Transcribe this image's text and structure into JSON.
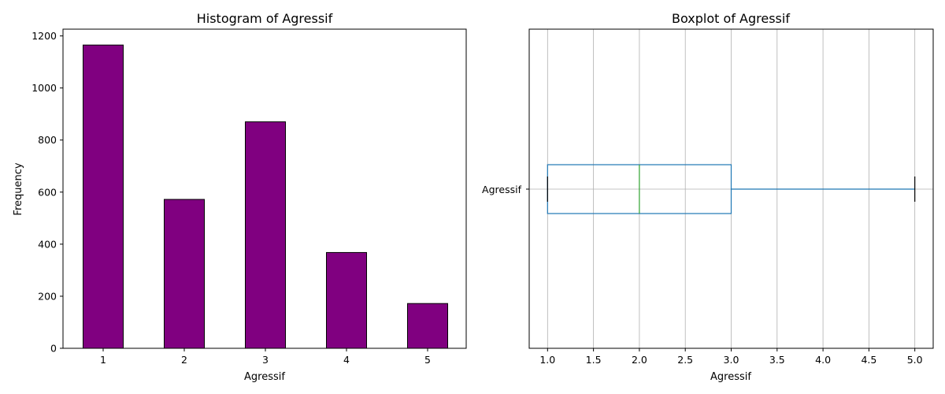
{
  "chart_data": [
    {
      "type": "bar",
      "title": "Histogram of Agressif",
      "xlabel": "Agressif",
      "ylabel": "Frequency",
      "categories": [
        "1",
        "2",
        "3",
        "4",
        "5"
      ],
      "values": [
        1165,
        572,
        870,
        368,
        172
      ],
      "ylim": [
        0,
        1226
      ],
      "yticks": [
        0,
        200,
        400,
        600,
        800,
        1000,
        1200
      ],
      "bar_color": "#800080",
      "edge_color": "#000000",
      "grid": false
    },
    {
      "type": "boxplot",
      "title": "Boxplot of Agressif",
      "xlabel": "Agressif",
      "category": "Agressif",
      "orientation": "horizontal",
      "stats": {
        "whisker_low": 1,
        "q1": 1,
        "median": 2,
        "q3": 3,
        "whisker_high": 5
      },
      "xlim": [
        0.8,
        5.2
      ],
      "xticks": [
        1.0,
        1.5,
        2.0,
        2.5,
        3.0,
        3.5,
        4.0,
        4.5,
        5.0
      ],
      "box_color": "#1f77b4",
      "median_color": "#2ca02c",
      "whisker_cap_color": "#000000",
      "grid": true
    }
  ]
}
